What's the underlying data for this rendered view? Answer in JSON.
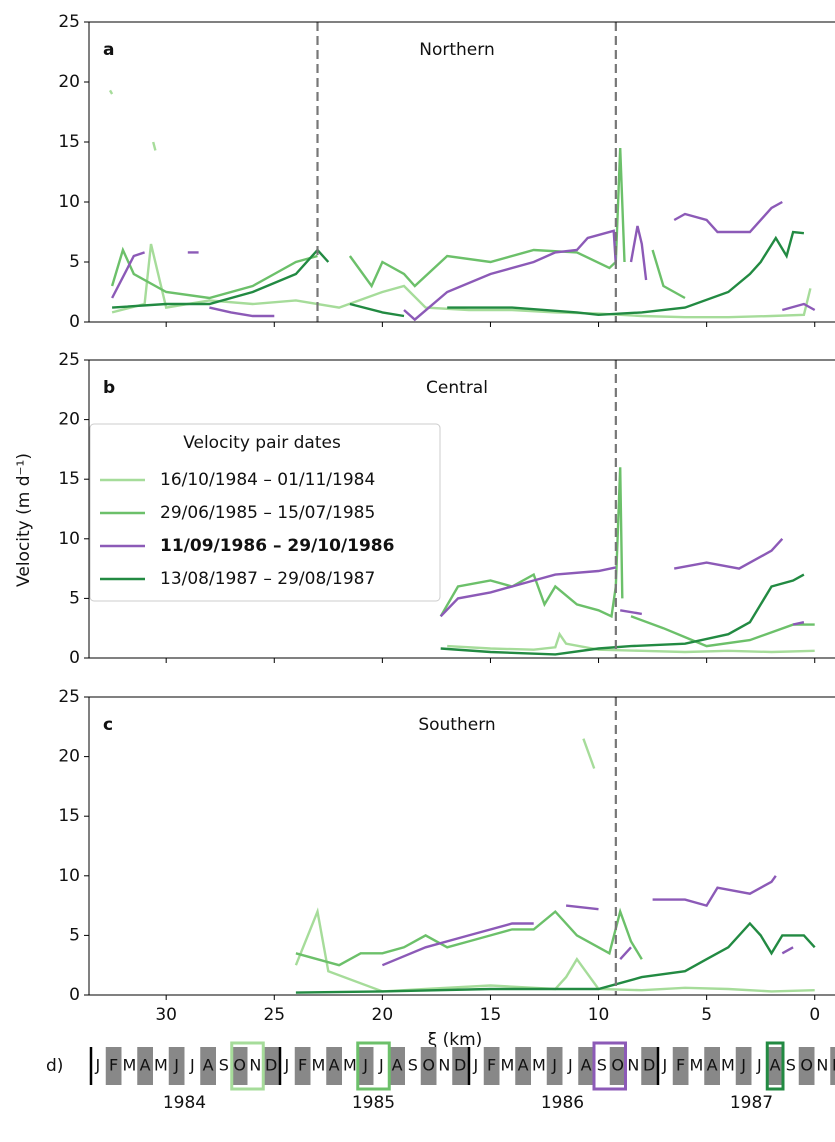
{
  "figure": {
    "ylabel": "Velocity (m d⁻¹)",
    "xlabel": "ξ (km)"
  },
  "legend": {
    "title": "Velocity pair dates",
    "entries": [
      {
        "name": "16/10/1984 – 01/11/1984",
        "color": "#a6dc9a",
        "bold": false
      },
      {
        "name": "29/06/1985 – 15/07/1985",
        "color": "#6cc06a",
        "bold": false
      },
      {
        "name": "11/09/1986 – 29/10/1986",
        "color": "#8c5ab7",
        "bold": true
      },
      {
        "name": "13/08/1987 – 29/08/1987",
        "color": "#228a42",
        "bold": false
      }
    ]
  },
  "chart_data": [
    {
      "type": "line",
      "panel_label": "a",
      "title": "Northern",
      "xlim": [
        33.57,
        -1.4
      ],
      "xticks": [
        30,
        25,
        20,
        15,
        10,
        5,
        0
      ],
      "ylim": [
        0,
        25
      ],
      "yticks": [
        0,
        5,
        10,
        15,
        20,
        25
      ],
      "vlines": [
        23,
        9.2
      ],
      "series": [
        {
          "color": "#a6dc9a",
          "x": [
            32.6,
            32.5,
            null,
            30.6,
            30.5,
            null,
            32.5,
            31,
            30.7,
            30,
            28,
            26,
            24,
            22,
            20,
            19,
            18,
            16,
            14,
            12,
            10,
            8,
            6,
            4,
            2,
            0.5,
            0.2
          ],
          "values": [
            19.3,
            19,
            null,
            15,
            14.3,
            null,
            0.8,
            1.5,
            6.5,
            1.2,
            1.8,
            1.5,
            1.8,
            1.2,
            2.5,
            3,
            1.2,
            1,
            1,
            0.8,
            0.7,
            0.5,
            0.4,
            0.4,
            0.5,
            0.6,
            2.8
          ]
        },
        {
          "color": "#6cc06a",
          "x": [
            32.5,
            32,
            31.5,
            30,
            28,
            26,
            25,
            24,
            23,
            null,
            21.5,
            20.5,
            20,
            19,
            18.5,
            17,
            15,
            13,
            11,
            9.5,
            9.2,
            9,
            8.8,
            null,
            7.5,
            7,
            6
          ],
          "values": [
            3,
            6,
            4,
            2.5,
            2,
            3,
            4,
            5,
            5.5,
            null,
            5.5,
            3,
            5,
            4,
            3,
            5.5,
            5,
            6,
            5.8,
            4.5,
            5,
            14.5,
            5,
            null,
            6,
            3,
            2
          ]
        },
        {
          "color": "#8c5ab7",
          "x": [
            32.5,
            31.5,
            31,
            null,
            29,
            28.5,
            null,
            28,
            27,
            26,
            25,
            null,
            19,
            18.5,
            17,
            15,
            13,
            12,
            11,
            10.5,
            9.3,
            9.2,
            null,
            8.5,
            8.2,
            8,
            7.8,
            null,
            6.5,
            6,
            5,
            4.5,
            3,
            2,
            1.5,
            null,
            1.5,
            0.5,
            0
          ],
          "values": [
            2,
            5.5,
            5.8,
            null,
            5.8,
            5.8,
            null,
            1.2,
            0.8,
            0.5,
            0.5,
            null,
            1,
            0.2,
            2.5,
            4,
            5,
            5.8,
            6,
            7,
            7.6,
            4.8,
            null,
            5,
            8,
            6.5,
            3.5,
            null,
            8.5,
            9,
            8.5,
            7.5,
            7.5,
            9.5,
            10,
            null,
            1,
            1.5,
            1
          ]
        },
        {
          "color": "#228a42",
          "x": [
            32.5,
            30,
            28,
            26,
            24,
            23,
            22.5,
            null,
            21.5,
            20,
            19,
            null,
            17,
            14,
            11,
            10,
            8,
            6,
            4,
            3,
            2.5,
            1.8,
            1.3,
            1,
            0.5
          ],
          "values": [
            1.2,
            1.5,
            1.5,
            2.5,
            4,
            6,
            5,
            null,
            1.5,
            0.8,
            0.5,
            null,
            1.2,
            1.2,
            0.8,
            0.6,
            0.8,
            1.2,
            2.5,
            4,
            5,
            7,
            5.5,
            7.5,
            7.4
          ]
        }
      ]
    },
    {
      "type": "line",
      "panel_label": "b",
      "title": "Central",
      "xlim": [
        33.57,
        -1.4
      ],
      "xticks": [
        30,
        25,
        20,
        15,
        10,
        5,
        0
      ],
      "ylim": [
        0,
        25
      ],
      "yticks": [
        0,
        5,
        10,
        15,
        20,
        25
      ],
      "vlines": [
        9.2
      ],
      "series": [
        {
          "color": "#a6dc9a",
          "x": [
            17,
            15,
            13,
            12,
            11.8,
            11.5,
            10,
            8,
            6,
            4,
            2,
            0
          ],
          "values": [
            1,
            0.8,
            0.7,
            0.9,
            2,
            1.2,
            0.7,
            0.6,
            0.5,
            0.6,
            0.5,
            0.6
          ]
        },
        {
          "color": "#6cc06a",
          "x": [
            17.3,
            16.5,
            15,
            14,
            13,
            12.5,
            12,
            11,
            10,
            9.4,
            9.2,
            9,
            8.9,
            null,
            8.5,
            7,
            5,
            3,
            1,
            0
          ],
          "values": [
            3.5,
            6,
            6.5,
            6,
            7,
            4.5,
            6,
            4.5,
            4,
            3.5,
            6,
            16,
            5,
            null,
            3.5,
            2.5,
            1,
            1.5,
            2.8,
            2.8
          ]
        },
        {
          "color": "#8c5ab7",
          "x": [
            17.3,
            16.5,
            15,
            13,
            12,
            10,
            9.2,
            null,
            9,
            8,
            null,
            6.5,
            5,
            3.5,
            2,
            1.5,
            null,
            1,
            0.5
          ],
          "values": [
            3.5,
            5,
            5.5,
            6.5,
            7,
            7.3,
            7.6,
            null,
            4,
            3.7,
            null,
            7.5,
            8,
            7.5,
            9,
            10,
            null,
            2.8,
            3
          ]
        },
        {
          "color": "#228a42",
          "x": [
            17.3,
            15,
            12,
            10,
            8.5,
            6,
            4,
            3,
            2.5,
            2,
            1,
            0.5
          ],
          "values": [
            0.8,
            0.5,
            0.3,
            0.8,
            1,
            1.2,
            2,
            3,
            4.5,
            6,
            6.5,
            7
          ]
        }
      ]
    },
    {
      "type": "line",
      "panel_label": "c",
      "title": "Southern",
      "xlim": [
        33.57,
        -1.4
      ],
      "xticks": [
        30,
        25,
        20,
        15,
        10,
        5,
        0
      ],
      "ylim": [
        0,
        25
      ],
      "yticks": [
        0,
        5,
        10,
        15,
        20,
        25
      ],
      "vlines": [
        9.2
      ],
      "series": [
        {
          "color": "#a6dc9a",
          "x": [
            10.7,
            10.3,
            10.2,
            null,
            24,
            23,
            22.5,
            20,
            18,
            15,
            13,
            12,
            11.5,
            11,
            10,
            8,
            6,
            4,
            2,
            0
          ],
          "values": [
            21.5,
            19.5,
            19,
            null,
            2.5,
            7,
            2,
            0.3,
            0.5,
            0.8,
            0.6,
            0.5,
            1.5,
            3,
            0.5,
            0.4,
            0.6,
            0.5,
            0.3,
            0.4
          ]
        },
        {
          "color": "#6cc06a",
          "x": [
            24,
            22,
            21,
            20,
            19,
            18,
            17,
            16,
            15,
            14,
            13,
            12,
            11,
            10,
            9.5,
            9,
            8.5,
            8
          ],
          "values": [
            3.5,
            2.5,
            3.5,
            3.5,
            4,
            5,
            4,
            4.5,
            5,
            5.5,
            5.5,
            7,
            5,
            4,
            3.5,
            7,
            4.5,
            3
          ]
        },
        {
          "color": "#8c5ab7",
          "x": [
            20,
            18,
            16,
            14,
            13,
            null,
            11.5,
            10,
            null,
            9,
            8.5,
            null,
            7.5,
            6,
            5,
            4.5,
            3,
            2,
            1.8,
            null,
            1.5,
            1
          ],
          "values": [
            2.5,
            4,
            5,
            6,
            6,
            null,
            7.5,
            7.2,
            null,
            3,
            4,
            null,
            8,
            8,
            7.5,
            9,
            8.5,
            9.5,
            10,
            null,
            3.5,
            4
          ]
        },
        {
          "color": "#228a42",
          "x": [
            24,
            20,
            15,
            10,
            8,
            6,
            5,
            4,
            3,
            2.5,
            2,
            1.5,
            0.5,
            0
          ],
          "values": [
            0.2,
            0.3,
            0.5,
            0.5,
            1.5,
            2,
            3,
            4,
            6,
            5,
            3.5,
            5,
            5,
            4
          ]
        }
      ]
    }
  ],
  "timeline": {
    "label": "d)",
    "years": [
      "1984",
      "1985",
      "1986",
      "1987"
    ],
    "months": [
      "J",
      "F",
      "M",
      "A",
      "M",
      "J",
      "J",
      "A",
      "S",
      "O",
      "N",
      "D"
    ],
    "highlights": [
      {
        "year_index": 0,
        "months": [
          9,
          10
        ],
        "color": "#a6dc9a"
      },
      {
        "year_index": 1,
        "months": [
          5,
          6
        ],
        "color": "#6cc06a"
      },
      {
        "year_index": 2,
        "months": [
          8,
          9
        ],
        "color": "#8c5ab7"
      },
      {
        "year_index": 3,
        "months": [
          7,
          7
        ],
        "color": "#228a42"
      }
    ]
  }
}
